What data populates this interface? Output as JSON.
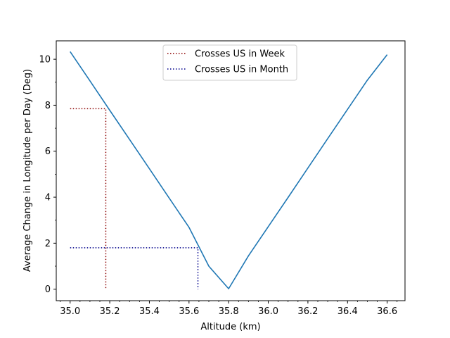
{
  "chart_data": {
    "type": "line",
    "title": "",
    "xlabel": "Altitude (km)",
    "ylabel": "Average Change in Longitude per Day (Deg)",
    "xlim": [
      34.93,
      36.69
    ],
    "ylim": [
      -0.5,
      10.8
    ],
    "xticks": [
      35.0,
      35.2,
      35.4,
      35.6,
      35.8,
      36.0,
      36.2,
      36.4,
      36.6
    ],
    "xtick_labels": [
      "35.0",
      "35.2",
      "35.4",
      "35.6",
      "35.8",
      "36.0",
      "36.2",
      "36.4",
      "36.6"
    ],
    "yticks": [
      0,
      2,
      4,
      6,
      8,
      10
    ],
    "ytick_labels": [
      "0",
      "2",
      "4",
      "6",
      "8",
      "10"
    ],
    "grid": false,
    "legend_position": "upper-center",
    "series": [
      {
        "type": "line",
        "color": "#1f77b4",
        "style": "solid",
        "x": [
          35.0,
          35.1,
          35.2,
          35.3,
          35.4,
          35.5,
          35.6,
          35.7,
          35.8,
          35.9,
          36.0,
          36.1,
          36.2,
          36.3,
          36.4,
          36.5,
          36.6
        ],
        "y": [
          10.33,
          9.06,
          7.78,
          6.51,
          5.24,
          3.96,
          2.69,
          1.0,
          0.02,
          1.45,
          2.72,
          3.99,
          5.27,
          6.55,
          7.82,
          9.09,
          10.2
        ]
      },
      {
        "name": "Crosses US in Week",
        "type": "line",
        "color": "#8b0000",
        "style": "dotted",
        "x": [
          35.0,
          35.18,
          35.18
        ],
        "y": [
          7.85,
          7.85,
          0
        ]
      },
      {
        "name": "Crosses US in Month",
        "type": "line",
        "color": "#00008b",
        "style": "dotted",
        "x": [
          35.0,
          35.645,
          35.645
        ],
        "y": [
          1.8,
          1.8,
          0
        ]
      }
    ]
  }
}
